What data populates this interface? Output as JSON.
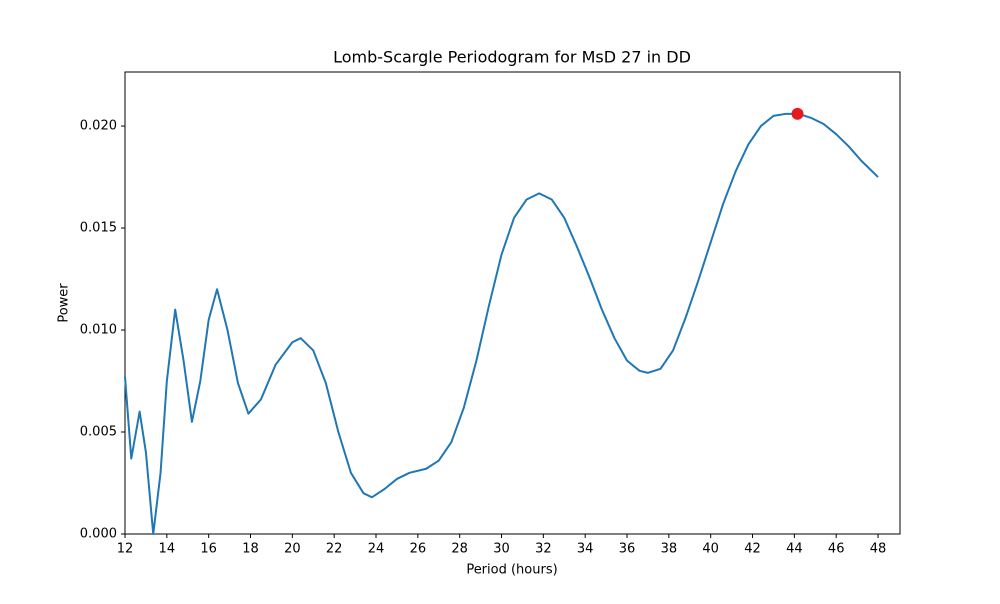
{
  "chart_data": {
    "type": "line",
    "title": "Lomb-Scargle Periodogram for MsD 27 in DD",
    "x_label": "Period (hours)",
    "y_label": "Power",
    "x": [
      12,
      12.3,
      12.7,
      13.0,
      13.35,
      13.7,
      14.0,
      14.4,
      14.8,
      15.2,
      15.6,
      16.0,
      16.4,
      16.9,
      17.4,
      17.9,
      18.5,
      19.2,
      20.0,
      20.4,
      21.0,
      21.6,
      22.2,
      22.8,
      23.4,
      23.8,
      24.4,
      25.0,
      25.6,
      26.4,
      27.0,
      27.6,
      28.2,
      28.8,
      29.4,
      30.0,
      30.6,
      31.2,
      31.8,
      32.4,
      33.0,
      33.6,
      34.2,
      34.8,
      35.4,
      36.0,
      36.6,
      37.0,
      37.6,
      38.2,
      38.8,
      39.4,
      40.0,
      40.6,
      41.2,
      41.8,
      42.4,
      43.0,
      43.6,
      44.2,
      44.8,
      45.4,
      46.0,
      46.6,
      47.2,
      48.0
    ],
    "series": [
      {
        "color": "#1f77b4",
        "values": [
          0.0077,
          0.0037,
          0.006,
          0.004,
          0.0,
          0.003,
          0.0075,
          0.011,
          0.0085,
          0.0055,
          0.0075,
          0.0105,
          0.012,
          0.01,
          0.0074,
          0.0059,
          0.0066,
          0.0083,
          0.0094,
          0.0096,
          0.009,
          0.0074,
          0.005,
          0.003,
          0.002,
          0.0018,
          0.0022,
          0.0027,
          0.003,
          0.0032,
          0.0036,
          0.0045,
          0.0062,
          0.0085,
          0.0112,
          0.0137,
          0.0155,
          0.0164,
          0.0167,
          0.0164,
          0.0155,
          0.0141,
          0.0126,
          0.011,
          0.0096,
          0.0085,
          0.008,
          0.0079,
          0.0081,
          0.009,
          0.0106,
          0.0124,
          0.0143,
          0.0162,
          0.0178,
          0.0191,
          0.02,
          0.0205,
          0.0206,
          0.0206,
          0.0204,
          0.0201,
          0.0196,
          0.019,
          0.0183,
          0.0175
        ]
      }
    ],
    "peak": {
      "x": 44.15,
      "y": 0.0206,
      "color": "#e41a1c"
    },
    "xlim": [
      12,
      49.05
    ],
    "ylim": [
      0,
      0.02265
    ],
    "xticks": [
      12,
      14,
      16,
      18,
      20,
      22,
      24,
      26,
      28,
      30,
      32,
      34,
      36,
      38,
      40,
      42,
      44,
      46,
      48
    ],
    "yticks": [
      {
        "value": 0,
        "label": "0.000"
      },
      {
        "value": 0.005,
        "label": "0.005"
      },
      {
        "value": 0.01,
        "label": "0.010"
      },
      {
        "value": 0.015,
        "label": "0.015"
      },
      {
        "value": 0.02,
        "label": "0.020"
      }
    ]
  }
}
